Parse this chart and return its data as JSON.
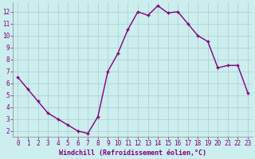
{
  "x": [
    0,
    1,
    2,
    3,
    4,
    5,
    6,
    7,
    8,
    9,
    10,
    11,
    12,
    13,
    14,
    15,
    16,
    17,
    18,
    19,
    20,
    21,
    22,
    23
  ],
  "y": [
    6.5,
    5.5,
    4.5,
    3.5,
    3.0,
    2.5,
    2.0,
    1.8,
    3.2,
    7.0,
    8.5,
    10.5,
    12.0,
    11.7,
    12.5,
    11.9,
    12.0,
    11.0,
    10.0,
    9.5,
    7.3,
    7.5,
    7.5,
    5.2
  ],
  "line_color": "#800080",
  "marker": "+",
  "marker_size": 3,
  "line_width": 1.0,
  "bg_color": "#cceeee",
  "grid_color": "#aacccc",
  "xlabel": "Windchill (Refroidissement éolien,°C)",
  "xlabel_color": "#800080",
  "xlabel_fontsize": 6.0,
  "tick_label_color": "#800080",
  "tick_fontsize": 5.5,
  "xlim": [
    -0.5,
    23.5
  ],
  "ylim": [
    1.5,
    12.8
  ],
  "yticks": [
    2,
    3,
    4,
    5,
    6,
    7,
    8,
    9,
    10,
    11,
    12
  ],
  "xticks": [
    0,
    1,
    2,
    3,
    4,
    5,
    6,
    7,
    8,
    9,
    10,
    11,
    12,
    13,
    14,
    15,
    16,
    17,
    18,
    19,
    20,
    21,
    22,
    23
  ]
}
